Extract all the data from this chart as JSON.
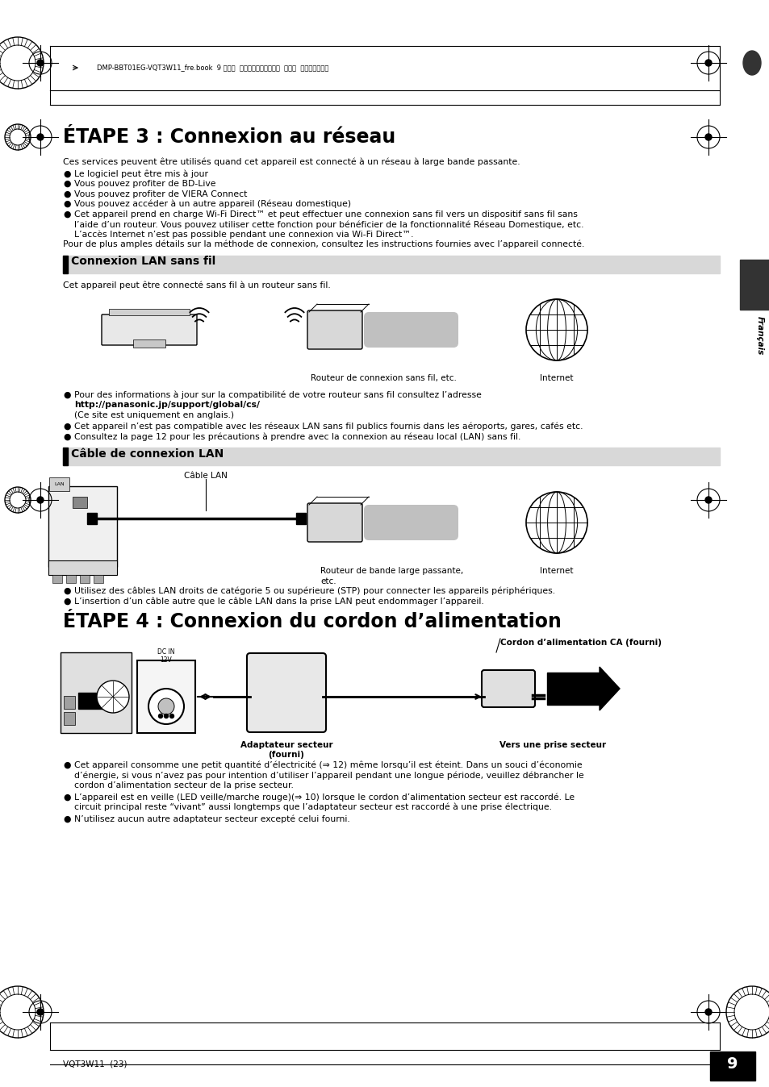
{
  "page_bg": "#ffffff",
  "header_text": "DMP-BBT01EG-VQT3W11_fre.book  9 ページ  ２０１２年４月１１日  水曜日  午後３時１８分",
  "title1": "ÉTAPE 3 : Connexion au réseau",
  "intro_text": "Ces services peuvent être utilisés quand cet appareil est connecté à un réseau à large bande passante.",
  "b1_0": "Le logiciel peut être mis à jour",
  "b1_1": "Vous pouvez profiter de BD-Live",
  "b1_2": "Vous pouvez profiter de VIERA Connect",
  "b1_3": "Vous pouvez accéder à un autre appareil (Réseau domestique)",
  "b1_4a": "Cet appareil prend en charge Wi-Fi Direct™ et peut effectuer une connexion sans fil vers un dispositif sans fil sans",
  "b1_4b": "l’aide d’un routeur. Vous pouvez utiliser cette fonction pour bénéficier de la fonctionnalité Réseau Domestique, etc.",
  "b1_4c": "L’accès Internet n’est pas possible pendant une connexion via Wi-Fi Direct™.",
  "b1_5": "Pour de plus amples détails sur la méthode de connexion, consultez les instructions fournies avec l’appareil connecté.",
  "section1_title": "Connexion LAN sans fil",
  "section1_sub": "Cet appareil peut être connecté sans fil à un routeur sans fil.",
  "router1_label": "Routeur de connexion sans fil, etc.",
  "internet_label": "Internet",
  "b2_0a": "Pour des informations à jour sur la compatibilité de votre routeur sans fil consultez l’adresse",
  "b2_0b": "http://panasonic.jp/support/global/cs/",
  "b2_0c": "(Ce site est uniquement en anglais.)",
  "b2_1": "Cet appareil n’est pas compatible avec les réseaux LAN sans fil publics fournis dans les aéroports, gares, cafés etc.",
  "b2_2": "Consultez la page 12 pour les précautions à prendre avec la connexion au réseau local (LAN) sans fil.",
  "sidebar_text": "Français",
  "section2_title": "Câble de connexion LAN",
  "cable_lan_label": "Câble LAN",
  "router2_label_a": "Routeur de bande large passante,",
  "router2_label_b": "etc.",
  "internet2_label": "Internet",
  "b3_0": "Utilisez des câbles LAN droits de catégorie 5 ou supérieure (STP) pour connecter les appareils périphériques.",
  "b3_1": "L’insertion d’un câble autre que le câble LAN dans la prise LAN peut endommager l’appareil.",
  "title2": "ÉTAPE 4 : Connexion du cordon d’alimentation",
  "power_ca_label": "Cordon d’alimentation CA (fourni)",
  "adapter_label": "Adaptateur secteur\n(fourni)",
  "prise_label": "Vers une prise secteur",
  "b4_0a": "Cet appareil consomme une petit quantité d’électricité (⇒ 12) même lorsqu’il est éteint. Dans un souci d’économie",
  "b4_0b": "d’énergie, si vous n’avez pas pour intention d’utiliser l’appareil pendant une longue période, veuillez débrancher le",
  "b4_0c": "cordon d’alimentation secteur de la prise secteur.",
  "b4_1a": "L’appareil est en veille (LED veille/marche rouge)(⇒ 10) lorsque le cordon d’alimentation secteur est raccordé. Le",
  "b4_1b": "circuit principal reste “vivant” aussi longtemps que l’adaptateur secteur est raccordé à une prise électrique.",
  "b4_2": "N’utilisez aucun autre adaptateur secteur excepté celui fourni.",
  "footer_text": "VQT3W11  (23)",
  "footer_page": "9",
  "gray_section": "#d8d8d8",
  "dark_bar": "#222222",
  "sidebar_dark": "#333333"
}
